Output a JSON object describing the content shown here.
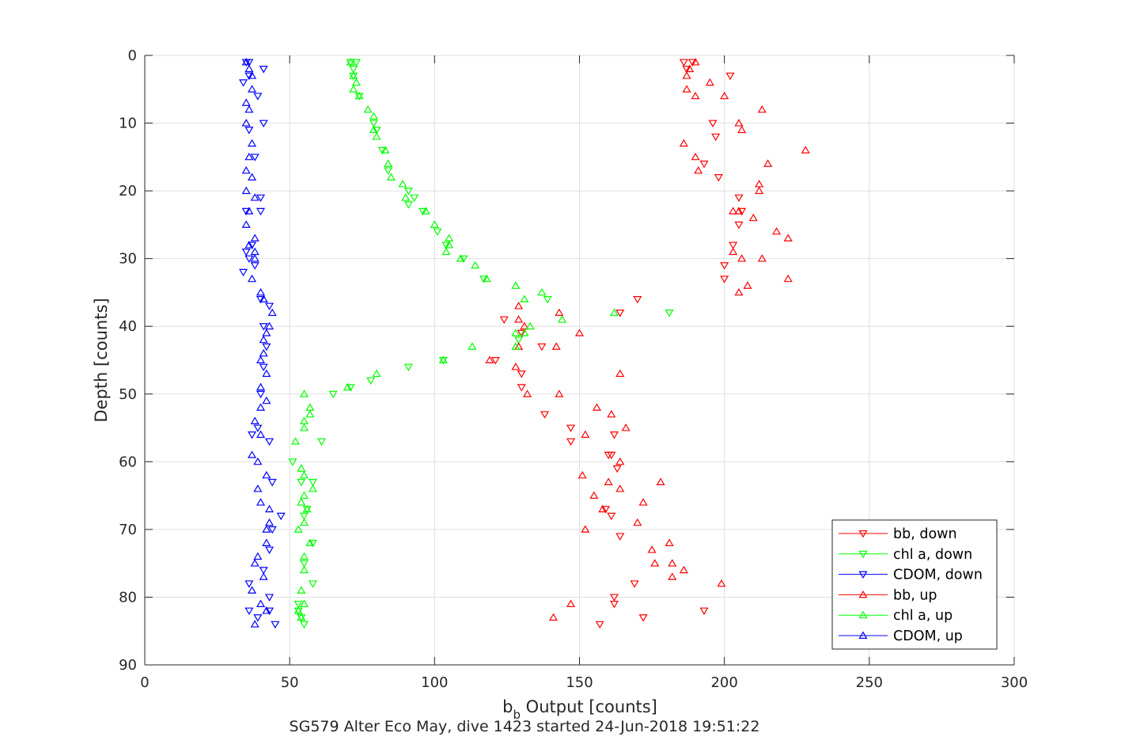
{
  "chart_data": {
    "type": "scatter",
    "title": "",
    "xlabel": "b_b Output [counts]",
    "xlabel_main": "b",
    "xlabel_sub": "b",
    "xlabel_rest": " Output [counts]",
    "ylabel": "Depth [counts]",
    "caption": "SG579 Alter Eco May, dive 1423 started 24-Jun-2018 19:51:22",
    "xlim": [
      0,
      300
    ],
    "ylim": [
      0,
      90
    ],
    "y_reversed": true,
    "xticks": [
      0,
      50,
      100,
      150,
      200,
      250,
      300
    ],
    "yticks": [
      0,
      10,
      20,
      30,
      40,
      50,
      60,
      70,
      80,
      90
    ],
    "grid": true,
    "legend_position": "bottom-right",
    "series": [
      {
        "name": "bb, down",
        "color": "#ff0000",
        "marker": "triangle-down",
        "points": [
          [
            186,
            1
          ],
          [
            189,
            1
          ],
          [
            187,
            2
          ],
          [
            202,
            3
          ],
          [
            196,
            10
          ],
          [
            197,
            12
          ],
          [
            193,
            16
          ],
          [
            198,
            18
          ],
          [
            205,
            21
          ],
          [
            206,
            23
          ],
          [
            205,
            25
          ],
          [
            203,
            28
          ],
          [
            200,
            31
          ],
          [
            200,
            33
          ],
          [
            170,
            36
          ],
          [
            164,
            38
          ],
          [
            124,
            39
          ],
          [
            130,
            41
          ],
          [
            137,
            43
          ],
          [
            121,
            45
          ],
          [
            130,
            47
          ],
          [
            130,
            49
          ],
          [
            138,
            53
          ],
          [
            147,
            55
          ],
          [
            162,
            56
          ],
          [
            147,
            57
          ],
          [
            161,
            59
          ],
          [
            160,
            59
          ],
          [
            163,
            61
          ],
          [
            159,
            67
          ],
          [
            161,
            68
          ],
          [
            164,
            71
          ],
          [
            169,
            78
          ],
          [
            162,
            80
          ],
          [
            162,
            81
          ],
          [
            172,
            83
          ],
          [
            157,
            84
          ],
          [
            193,
            82
          ]
        ]
      },
      {
        "name": "chl a, down",
        "color": "#00ff00",
        "marker": "triangle-down",
        "points": [
          [
            71,
            1
          ],
          [
            73,
            1
          ],
          [
            72,
            2
          ],
          [
            72,
            3
          ],
          [
            74,
            6
          ],
          [
            79,
            10
          ],
          [
            80,
            11
          ],
          [
            82,
            14
          ],
          [
            84,
            17
          ],
          [
            91,
            20
          ],
          [
            93,
            21
          ],
          [
            91,
            22
          ],
          [
            96,
            23
          ],
          [
            101,
            26
          ],
          [
            104,
            28
          ],
          [
            110,
            30
          ],
          [
            117,
            33
          ],
          [
            139,
            36
          ],
          [
            181,
            38
          ],
          [
            129,
            42
          ],
          [
            103,
            45
          ],
          [
            91,
            46
          ],
          [
            78,
            48
          ],
          [
            71,
            49
          ],
          [
            65,
            50
          ],
          [
            61,
            57
          ],
          [
            51,
            60
          ],
          [
            58,
            63
          ],
          [
            54,
            63
          ],
          [
            56,
            67
          ],
          [
            55,
            68
          ],
          [
            58,
            72
          ],
          [
            55,
            75
          ],
          [
            58,
            78
          ],
          [
            53,
            81
          ],
          [
            53,
            82
          ],
          [
            54,
            83
          ],
          [
            55,
            84
          ]
        ]
      },
      {
        "name": "CDOM, down",
        "color": "#0000ff",
        "marker": "triangle-down",
        "points": [
          [
            35,
            1
          ],
          [
            36,
            1
          ],
          [
            41,
            2
          ],
          [
            36,
            3
          ],
          [
            34,
            4
          ],
          [
            39,
            6
          ],
          [
            41,
            10
          ],
          [
            36,
            11
          ],
          [
            38,
            15
          ],
          [
            40,
            21
          ],
          [
            35,
            23
          ],
          [
            40,
            23
          ],
          [
            37,
            28
          ],
          [
            35,
            29
          ],
          [
            36,
            30
          ],
          [
            38,
            31
          ],
          [
            34,
            32
          ],
          [
            40,
            36
          ],
          [
            43,
            37
          ],
          [
            41,
            40
          ],
          [
            42,
            43
          ],
          [
            41,
            46
          ],
          [
            40,
            50
          ],
          [
            39,
            55
          ],
          [
            37,
            56
          ],
          [
            43,
            57
          ],
          [
            44,
            63
          ],
          [
            47,
            68
          ],
          [
            44,
            70
          ],
          [
            43,
            73
          ],
          [
            41,
            76
          ],
          [
            36,
            78
          ],
          [
            43,
            80
          ],
          [
            43,
            82
          ],
          [
            36,
            82
          ],
          [
            39,
            83
          ],
          [
            45,
            84
          ]
        ]
      },
      {
        "name": "bb, up",
        "color": "#ff0000",
        "marker": "triangle-up",
        "points": [
          [
            190,
            1
          ],
          [
            188,
            2
          ],
          [
            187,
            3
          ],
          [
            195,
            4
          ],
          [
            187,
            5
          ],
          [
            190,
            6
          ],
          [
            200,
            6
          ],
          [
            213,
            8
          ],
          [
            205,
            10
          ],
          [
            206,
            11
          ],
          [
            186,
            13
          ],
          [
            190,
            15
          ],
          [
            215,
            16
          ],
          [
            228,
            14
          ],
          [
            191,
            17
          ],
          [
            212,
            19
          ],
          [
            212,
            20
          ],
          [
            203,
            23
          ],
          [
            205,
            23
          ],
          [
            210,
            24
          ],
          [
            218,
            26
          ],
          [
            222,
            27
          ],
          [
            213,
            30
          ],
          [
            206,
            30
          ],
          [
            203,
            29
          ],
          [
            208,
            34
          ],
          [
            222,
            33
          ],
          [
            205,
            35
          ],
          [
            129,
            37
          ],
          [
            143,
            38
          ],
          [
            129,
            39
          ],
          [
            131,
            40
          ],
          [
            150,
            41
          ],
          [
            142,
            43
          ],
          [
            129,
            43
          ],
          [
            119,
            45
          ],
          [
            128,
            46
          ],
          [
            164,
            47
          ],
          [
            143,
            50
          ],
          [
            132,
            50
          ],
          [
            156,
            52
          ],
          [
            161,
            53
          ],
          [
            166,
            55
          ],
          [
            152,
            56
          ],
          [
            164,
            60
          ],
          [
            151,
            62
          ],
          [
            160,
            63
          ],
          [
            164,
            64
          ],
          [
            178,
            63
          ],
          [
            155,
            65
          ],
          [
            172,
            66
          ],
          [
            158,
            67
          ],
          [
            170,
            69
          ],
          [
            152,
            70
          ],
          [
            181,
            72
          ],
          [
            175,
            73
          ],
          [
            176,
            75
          ],
          [
            182,
            75
          ],
          [
            186,
            76
          ],
          [
            182,
            77
          ],
          [
            199,
            78
          ],
          [
            147,
            81
          ],
          [
            141,
            83
          ]
        ]
      },
      {
        "name": "chl a, up",
        "color": "#00ff00",
        "marker": "triangle-up",
        "points": [
          [
            71,
            1
          ],
          [
            72,
            3
          ],
          [
            73,
            4
          ],
          [
            72,
            5
          ],
          [
            74,
            6
          ],
          [
            77,
            8
          ],
          [
            79,
            9
          ],
          [
            79,
            11
          ],
          [
            80,
            12
          ],
          [
            83,
            14
          ],
          [
            84,
            16
          ],
          [
            85,
            18
          ],
          [
            89,
            19
          ],
          [
            90,
            21
          ],
          [
            97,
            23
          ],
          [
            100,
            25
          ],
          [
            105,
            27
          ],
          [
            105,
            28
          ],
          [
            104,
            29
          ],
          [
            109,
            30
          ],
          [
            114,
            31
          ],
          [
            118,
            33
          ],
          [
            128,
            34
          ],
          [
            137,
            35
          ],
          [
            131,
            36
          ],
          [
            162,
            38
          ],
          [
            144,
            39
          ],
          [
            133,
            40
          ],
          [
            128,
            41
          ],
          [
            131,
            41
          ],
          [
            113,
            43
          ],
          [
            128,
            43
          ],
          [
            103,
            45
          ],
          [
            80,
            47
          ],
          [
            70,
            49
          ],
          [
            55,
            50
          ],
          [
            57,
            52
          ],
          [
            57,
            53
          ],
          [
            55,
            54
          ],
          [
            55,
            55
          ],
          [
            52,
            57
          ],
          [
            54,
            61
          ],
          [
            55,
            62
          ],
          [
            58,
            64
          ],
          [
            55,
            65
          ],
          [
            54,
            66
          ],
          [
            56,
            67
          ],
          [
            55,
            69
          ],
          [
            53,
            70
          ],
          [
            57,
            72
          ],
          [
            55,
            74
          ],
          [
            55,
            76
          ],
          [
            54,
            79
          ],
          [
            55,
            81
          ],
          [
            53,
            82
          ],
          [
            54,
            83
          ]
        ]
      },
      {
        "name": "CDOM, up",
        "color": "#0000ff",
        "marker": "triangle-up",
        "points": [
          [
            35,
            1
          ],
          [
            36,
            2
          ],
          [
            37,
            3
          ],
          [
            37,
            5
          ],
          [
            35,
            7
          ],
          [
            36,
            8
          ],
          [
            35,
            10
          ],
          [
            37,
            13
          ],
          [
            36,
            15
          ],
          [
            35,
            17
          ],
          [
            37,
            18
          ],
          [
            35,
            20
          ],
          [
            38,
            21
          ],
          [
            36,
            23
          ],
          [
            35,
            25
          ],
          [
            38,
            27
          ],
          [
            36,
            28
          ],
          [
            38,
            29
          ],
          [
            38,
            30
          ],
          [
            37,
            33
          ],
          [
            40,
            35
          ],
          [
            41,
            36
          ],
          [
            44,
            38
          ],
          [
            43,
            40
          ],
          [
            42,
            41
          ],
          [
            41,
            42
          ],
          [
            41,
            44
          ],
          [
            40,
            45
          ],
          [
            42,
            47
          ],
          [
            40,
            49
          ],
          [
            42,
            51
          ],
          [
            40,
            52
          ],
          [
            38,
            54
          ],
          [
            40,
            56
          ],
          [
            37,
            59
          ],
          [
            39,
            60
          ],
          [
            42,
            62
          ],
          [
            39,
            64
          ],
          [
            40,
            66
          ],
          [
            43,
            67
          ],
          [
            43,
            69
          ],
          [
            42,
            70
          ],
          [
            42,
            72
          ],
          [
            39,
            74
          ],
          [
            38,
            75
          ],
          [
            41,
            77
          ],
          [
            37,
            79
          ],
          [
            40,
            81
          ],
          [
            42,
            82
          ],
          [
            38,
            84
          ]
        ]
      }
    ]
  }
}
